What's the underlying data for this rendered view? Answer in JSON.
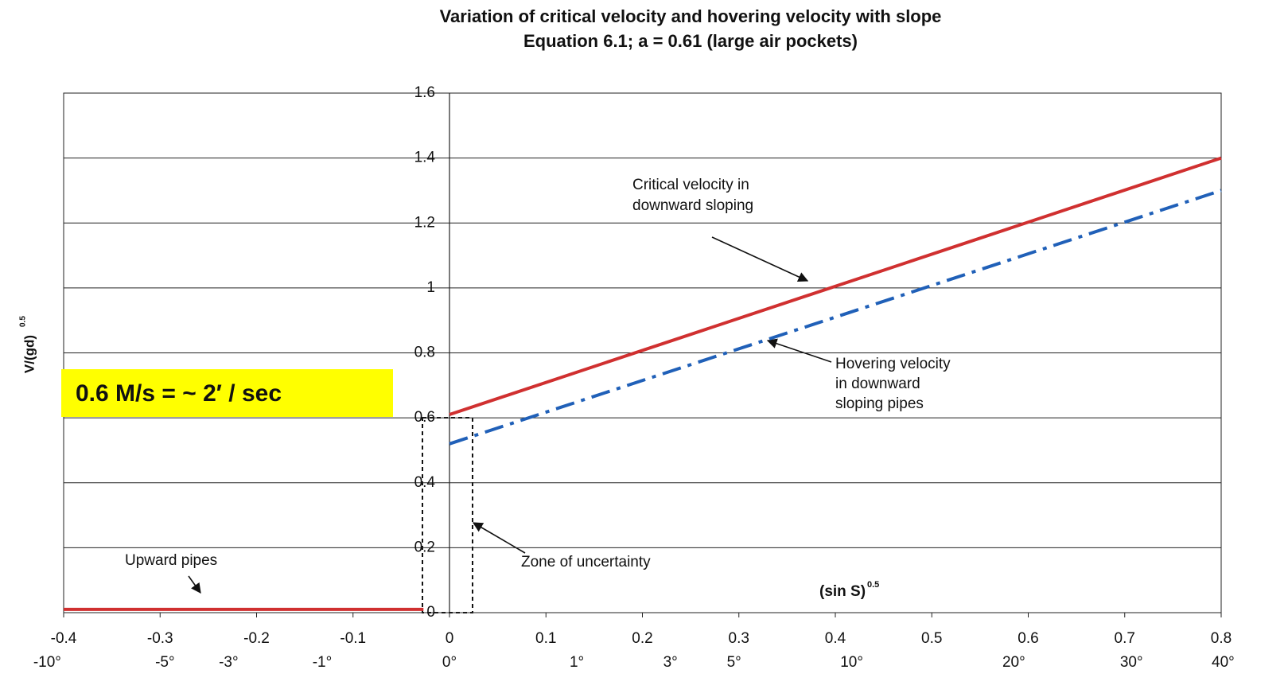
{
  "chart_data": {
    "type": "line",
    "title": "Variation of critical velocity and hovering velocity with slope",
    "subtitle": "Equation 6.1; a = 0.61 (large air pockets)",
    "ylabel": "V/(gd)",
    "ylabel_sup": "0.5",
    "xlabel": "(sin S)",
    "xlabel_sup": "0.5",
    "xlim": [
      -0.4,
      0.8
    ],
    "ylim": [
      0,
      1.6
    ],
    "xticks": [
      -0.4,
      -0.3,
      -0.2,
      -0.1,
      0,
      0.1,
      0.2,
      0.3,
      0.4,
      0.5,
      0.6,
      0.7,
      0.8
    ],
    "yticks": [
      0,
      0.2,
      0.4,
      0.6,
      0.8,
      1,
      1.2,
      1.4,
      1.6
    ],
    "x2ticks": [
      {
        "value": -0.417,
        "label": "-10°"
      },
      {
        "value": -0.295,
        "label": "-5°"
      },
      {
        "value": -0.229,
        "label": "-3°"
      },
      {
        "value": -0.132,
        "label": "-1°"
      },
      {
        "value": 0,
        "label": "0°"
      },
      {
        "value": 0.132,
        "label": "1°"
      },
      {
        "value": 0.229,
        "label": "3°"
      },
      {
        "value": 0.295,
        "label": "5°"
      },
      {
        "value": 0.417,
        "label": "10°"
      },
      {
        "value": 0.585,
        "label": "20°"
      },
      {
        "value": 0.707,
        "label": "30°"
      },
      {
        "value": 0.802,
        "label": "40°"
      }
    ],
    "grid": true,
    "series": [
      {
        "color": "#d03030",
        "style": "solid",
        "x": [
          -0.4,
          -0.027
        ],
        "values": [
          0.01,
          0.01
        ]
      },
      {
        "color": "#d03030",
        "style": "solid",
        "x": [
          0,
          0.8
        ],
        "values": [
          0.61,
          1.4
        ]
      },
      {
        "color": "#2060b8",
        "style": "dash-dot",
        "x": [
          0,
          0.8
        ],
        "values": [
          0.52,
          1.3
        ]
      }
    ],
    "annotations": [
      {
        "lines": [
          "Critical velocity in",
          "downward sloping"
        ]
      },
      {
        "lines": [
          "Hovering velocity",
          "in downward",
          "sloping pipes"
        ]
      },
      {
        "lines": [
          "Upward pipes"
        ]
      },
      {
        "lines": [
          "Zone of uncertainty"
        ]
      }
    ],
    "callout": "0.6 M/s = ~ 2′ / sec"
  }
}
